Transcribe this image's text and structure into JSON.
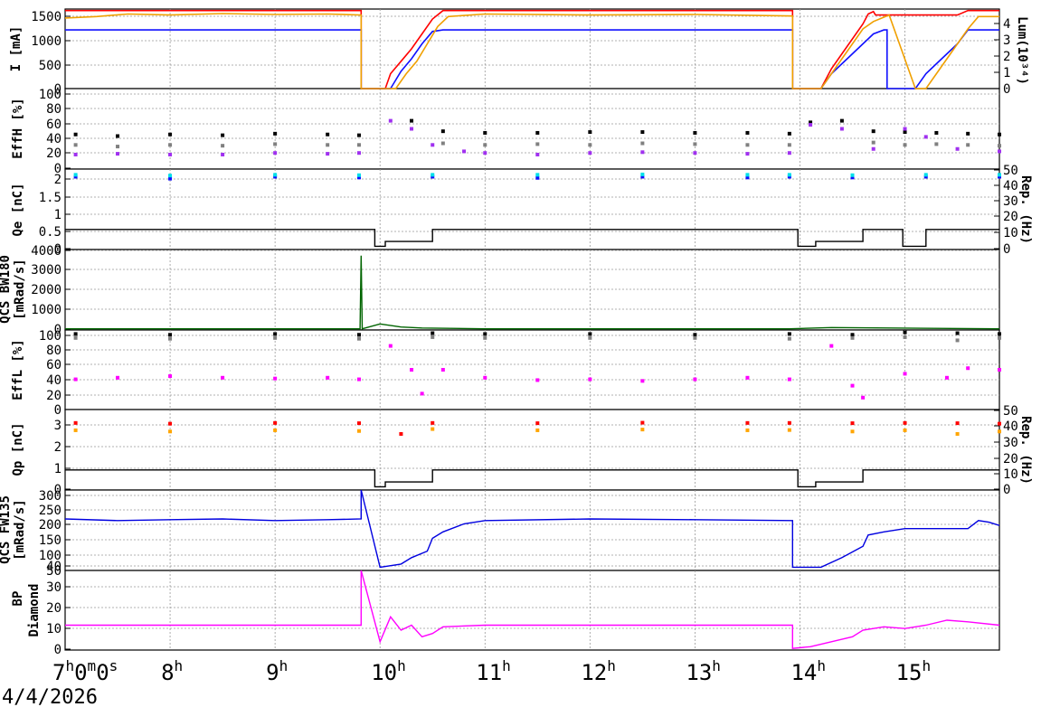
{
  "date": "4/4/2026",
  "x_tick_labels": [
    {
      "h": "7",
      "s1": "h",
      "m": "0",
      "s2": "m",
      "sec": "0",
      "s3": "s"
    },
    {
      "h": "8",
      "s1": "h"
    },
    {
      "h": "9",
      "s1": "h"
    },
    {
      "h": "10",
      "s1": "h"
    },
    {
      "h": "11",
      "s1": "h"
    },
    {
      "h": "12",
      "s1": "h"
    },
    {
      "h": "13",
      "s1": "h"
    },
    {
      "h": "14",
      "s1": "h"
    },
    {
      "h": "15",
      "s1": "h"
    }
  ],
  "panels": {
    "current": {
      "ylabel": "I [mA]",
      "yticks": [
        "0",
        "500",
        "1000",
        "1500"
      ],
      "r_label": "Lum(10³⁴)",
      "r_ticks": [
        "0",
        "1",
        "2",
        "3",
        "4"
      ]
    },
    "eff_h": {
      "ylabel": "EffH [%]",
      "yticks": [
        "0",
        "20",
        "40",
        "60",
        "80",
        "100"
      ]
    },
    "qe": {
      "ylabel": "Qe [nC]",
      "yticks": [
        "0",
        "0.5",
        "1",
        "1.5",
        "2"
      ],
      "r_label": "Rep. (Hz)",
      "r_ticks": [
        "0",
        "10",
        "20",
        "30",
        "40",
        "50"
      ]
    },
    "qcs_bw": {
      "ylabel_top": "QCS BW180",
      "ylabel_bot": "[mRad/s]",
      "yticks": [
        "0",
        "1000",
        "2000",
        "3000",
        "4000"
      ]
    },
    "eff_l": {
      "ylabel": "EffL [%]",
      "yticks": [
        "0",
        "20",
        "40",
        "60",
        "80",
        "100"
      ]
    },
    "qp": {
      "ylabel": "Qp [nC]",
      "yticks": [
        "0",
        "1",
        "2",
        "3"
      ],
      "r_label": "Rep. (Hz)",
      "r_ticks": [
        "0",
        "10",
        "20",
        "30",
        "40",
        "50"
      ]
    },
    "qcs_fw": {
      "ylabel_top": "QCS FW135",
      "ylabel_bot": "[mRad/s]",
      "yticks": [
        "50",
        "100",
        "150",
        "200",
        "250",
        "300"
      ]
    },
    "bp": {
      "ylabel_top": "BP",
      "ylabel_bot": "Diamond",
      "yticks": [
        "0",
        "10",
        "20",
        "30",
        "40"
      ]
    }
  },
  "chart_data": [
    {
      "type": "line",
      "panel": "current",
      "x_unit": "hour",
      "xlim": [
        7.0,
        15.9
      ],
      "ylim": [
        0,
        1600
      ],
      "series": [
        {
          "color": "#ff0000",
          "x": [
            7.0,
            9.82,
            9.82,
            10.05,
            10.1,
            10.2,
            10.3,
            10.4,
            10.5,
            10.6,
            13.93,
            13.93,
            14.2,
            14.3,
            14.4,
            14.5,
            14.6,
            14.65,
            14.7,
            14.72,
            15.1,
            15.2,
            15.3,
            15.4,
            15.5,
            15.6,
            15.9
          ],
          "y": [
            1570,
            1570,
            0,
            0,
            300,
            550,
            800,
            1100,
            1400,
            1570,
            1570,
            0,
            0,
            400,
            700,
            1000,
            1300,
            1500,
            1550,
            1480,
            1480,
            1480,
            1480,
            1480,
            1480,
            1570,
            1570
          ]
        },
        {
          "color": "#1010ff",
          "x": [
            7.0,
            9.82,
            9.82,
            10.1,
            10.2,
            10.3,
            10.4,
            10.5,
            10.6,
            13.93,
            13.93,
            14.2,
            14.3,
            14.4,
            14.5,
            14.6,
            14.7,
            14.8,
            14.83,
            14.83,
            15.1,
            15.2,
            15.3,
            15.4,
            15.5,
            15.6,
            15.9
          ],
          "y": [
            1180,
            1180,
            0,
            0,
            350,
            600,
            900,
            1150,
            1180,
            1180,
            0,
            0,
            300,
            500,
            700,
            900,
            1100,
            1180,
            1180,
            0,
            0,
            300,
            500,
            700,
            900,
            1180,
            1180
          ]
        },
        {
          "color": "#f0a000",
          "x": [
            7.0,
            7.3,
            7.6,
            8.0,
            8.5,
            9.0,
            9.5,
            9.82,
            9.82,
            10.15,
            10.25,
            10.35,
            10.45,
            10.55,
            10.65,
            11.0,
            12.0,
            13.0,
            13.93,
            13.93,
            14.2,
            14.3,
            14.4,
            14.5,
            14.6,
            14.7,
            14.85,
            15.1,
            15.2,
            15.3,
            15.4,
            15.5,
            15.6,
            15.7,
            15.9
          ],
          "y": [
            1420,
            1450,
            1500,
            1480,
            1510,
            1490,
            1500,
            1480,
            0,
            0,
            300,
            550,
            900,
            1250,
            1450,
            1500,
            1480,
            1490,
            1460,
            0,
            0,
            300,
            600,
            900,
            1200,
            1350,
            1480,
            0,
            0,
            300,
            600,
            900,
            1200,
            1450,
            1450
          ]
        }
      ]
    },
    {
      "type": "scatter",
      "panel": "eff_h",
      "x_unit": "hour",
      "xlim": [
        7.0,
        15.9
      ],
      "ylim": [
        0,
        100
      ],
      "series": [
        {
          "color": "#000000",
          "x": [
            7.1,
            7.5,
            8.0,
            8.5,
            9.0,
            9.5,
            9.8,
            10.3,
            10.6,
            11.0,
            11.5,
            12.0,
            12.5,
            13.0,
            13.5,
            13.9,
            14.1,
            14.4,
            14.7,
            15.0,
            15.3,
            15.6,
            15.9
          ],
          "y": [
            43,
            41,
            43,
            42,
            44,
            43,
            42,
            60,
            47,
            45,
            45,
            46,
            46,
            45,
            45,
            44,
            58,
            60,
            47,
            46,
            45,
            44,
            43
          ]
        },
        {
          "color": "#808080",
          "x": [
            7.1,
            7.5,
            8.0,
            8.5,
            9.0,
            9.5,
            9.8,
            10.6,
            11.0,
            11.5,
            12.0,
            12.5,
            13.0,
            13.5,
            13.9,
            14.7,
            15.0,
            15.3,
            15.6,
            15.9
          ],
          "y": [
            30,
            28,
            30,
            29,
            31,
            30,
            30,
            32,
            30,
            31,
            30,
            32,
            31,
            30,
            30,
            33,
            30,
            31,
            30,
            29
          ]
        },
        {
          "color": "#a030f0",
          "x": [
            7.1,
            7.5,
            8.0,
            8.5,
            9.0,
            9.5,
            9.8,
            10.1,
            10.3,
            10.5,
            10.8,
            11.0,
            11.5,
            12.0,
            12.5,
            13.0,
            13.5,
            13.9,
            14.1,
            14.4,
            14.7,
            15.0,
            15.2,
            15.5,
            15.9
          ],
          "y": [
            18,
            19,
            18,
            18,
            20,
            19,
            20,
            60,
            50,
            30,
            22,
            20,
            18,
            20,
            21,
            20,
            19,
            20,
            55,
            50,
            25,
            50,
            40,
            25,
            22
          ]
        }
      ]
    },
    {
      "type": "scatter",
      "panel": "qe",
      "x_unit": "hour",
      "xlim": [
        7.0,
        15.9
      ],
      "ylim": [
        0,
        2.1
      ],
      "series": [
        {
          "color": "#1010ff",
          "x": [
            7.1,
            8.0,
            9.0,
            9.8,
            10.5,
            11.5,
            12.5,
            13.5,
            13.9,
            14.5,
            15.2,
            15.9
          ],
          "y": [
            1.9,
            1.85,
            1.9,
            1.88,
            1.9,
            1.87,
            1.9,
            1.88,
            1.9,
            1.88,
            1.9,
            1.9
          ]
        },
        {
          "color": "#00e0e8",
          "x": [
            7.1,
            8.0,
            9.0,
            9.8,
            10.5,
            11.5,
            12.5,
            13.5,
            13.9,
            14.5,
            15.2,
            15.9
          ],
          "y": [
            1.95,
            1.93,
            1.95,
            1.94,
            1.95,
            1.95,
            1.96,
            1.95,
            1.95,
            1.94,
            1.95,
            1.95
          ]
        }
      ]
    },
    {
      "type": "line",
      "panel": "qe_rep",
      "x_unit": "hour",
      "xlim": [
        7.0,
        15.9
      ],
      "ylim": [
        0,
        50
      ],
      "series": [
        {
          "color": "#000000",
          "x": [
            7.0,
            9.95,
            9.95,
            10.05,
            10.05,
            10.5,
            10.5,
            13.98,
            13.98,
            14.15,
            14.15,
            14.6,
            14.6,
            14.98,
            14.98,
            15.2,
            15.2,
            15.9
          ],
          "y": [
            12.5,
            12.5,
            2,
            2,
            5,
            5,
            12.5,
            12.5,
            2,
            2,
            5,
            5,
            12.5,
            12.5,
            2,
            2,
            12.5,
            12.5
          ]
        }
      ]
    },
    {
      "type": "line",
      "panel": "qcs_bw",
      "x_unit": "hour",
      "xlim": [
        7.0,
        15.9
      ],
      "ylim": [
        0,
        4000
      ],
      "series": [
        {
          "color": "#006400",
          "x": [
            7.0,
            9.81,
            9.82,
            9.83,
            10.0,
            10.2,
            10.4,
            11.0,
            13.9,
            14.3,
            15.9
          ],
          "y": [
            60,
            60,
            3700,
            60,
            300,
            150,
            100,
            60,
            60,
            120,
            60
          ]
        }
      ]
    },
    {
      "type": "scatter",
      "panel": "eff_l",
      "x_unit": "hour",
      "xlim": [
        7.0,
        15.9
      ],
      "ylim": [
        0,
        100
      ],
      "series": [
        {
          "color": "#000000",
          "x": [
            7.1,
            8.0,
            9.0,
            9.8,
            10.5,
            11.0,
            12.0,
            13.0,
            13.9,
            14.5,
            15.0,
            15.5,
            15.9
          ],
          "y": [
            95,
            94,
            95,
            94,
            96,
            95,
            95,
            94,
            95,
            94,
            97,
            96,
            95
          ]
        },
        {
          "color": "#808080",
          "x": [
            7.1,
            8.0,
            9.0,
            9.8,
            10.5,
            11.0,
            12.0,
            13.0,
            13.9,
            14.5,
            15.0,
            15.5,
            15.9
          ],
          "y": [
            90,
            89,
            90,
            89,
            91,
            90,
            90,
            90,
            89,
            90,
            91,
            87,
            90
          ]
        },
        {
          "color": "#ff00ff",
          "x": [
            7.1,
            7.5,
            8.0,
            8.5,
            9.0,
            9.5,
            9.8,
            10.1,
            10.3,
            10.4,
            10.6,
            11.0,
            11.5,
            12.0,
            12.5,
            13.0,
            13.5,
            13.9,
            14.3,
            14.5,
            14.6,
            15.0,
            15.4,
            15.6,
            15.9
          ],
          "y": [
            38,
            40,
            42,
            40,
            39,
            40,
            38,
            80,
            50,
            20,
            50,
            40,
            37,
            38,
            36,
            38,
            40,
            38,
            80,
            30,
            15,
            45,
            40,
            52,
            50
          ]
        }
      ]
    },
    {
      "type": "scatter",
      "panel": "qp",
      "x_unit": "hour",
      "xlim": [
        7.0,
        15.9
      ],
      "ylim": [
        0,
        3.3
      ],
      "series": [
        {
          "color": "#ff0000",
          "x": [
            7.1,
            8.0,
            9.0,
            9.8,
            10.2,
            10.5,
            11.5,
            12.5,
            13.5,
            13.9,
            14.5,
            15.0,
            15.5,
            15.9
          ],
          "y": [
            2.75,
            2.72,
            2.75,
            2.74,
            2.3,
            2.75,
            2.74,
            2.76,
            2.75,
            2.75,
            2.74,
            2.75,
            2.74,
            2.72
          ]
        },
        {
          "color": "#ffa500",
          "x": [
            7.1,
            8.0,
            9.0,
            9.8,
            10.5,
            11.5,
            12.5,
            13.5,
            13.9,
            14.5,
            15.0,
            15.5,
            15.9
          ],
          "y": [
            2.45,
            2.4,
            2.45,
            2.42,
            2.5,
            2.45,
            2.48,
            2.45,
            2.46,
            2.4,
            2.45,
            2.3,
            2.4
          ]
        }
      ]
    },
    {
      "type": "line",
      "panel": "qp_rep",
      "x_unit": "hour",
      "xlim": [
        7.0,
        15.9
      ],
      "ylim": [
        0,
        50
      ],
      "series": [
        {
          "color": "#000000",
          "x": [
            7.0,
            9.95,
            9.95,
            10.05,
            10.05,
            10.5,
            10.5,
            13.98,
            13.98,
            14.15,
            14.15,
            14.6,
            14.6,
            15.9
          ],
          "y": [
            12.5,
            12.5,
            2,
            2,
            5,
            5,
            12.5,
            12.5,
            2,
            2,
            5,
            5,
            12.5,
            12.5
          ]
        }
      ]
    },
    {
      "type": "line",
      "panel": "qcs_fw",
      "x_unit": "hour",
      "xlim": [
        7.0,
        15.9
      ],
      "ylim": [
        50,
        300
      ],
      "series": [
        {
          "color": "#0000e0",
          "x": [
            7.0,
            7.5,
            8.0,
            8.5,
            9.0,
            9.5,
            9.82,
            9.82,
            10.0,
            10.2,
            10.3,
            10.45,
            10.5,
            10.6,
            10.8,
            11.0,
            12.0,
            13.0,
            13.93,
            13.93,
            14.2,
            14.4,
            14.6,
            14.65,
            14.8,
            15.0,
            15.3,
            15.6,
            15.7,
            15.8,
            15.9
          ],
          "y": [
            210,
            205,
            208,
            210,
            205,
            208,
            210,
            300,
            60,
            70,
            90,
            110,
            150,
            170,
            195,
            205,
            210,
            208,
            205,
            60,
            60,
            90,
            125,
            160,
            170,
            180,
            180,
            180,
            205,
            200,
            190
          ]
        }
      ]
    },
    {
      "type": "line",
      "panel": "bp",
      "x_unit": "hour",
      "xlim": [
        7.0,
        15.9
      ],
      "ylim": [
        0,
        48
      ],
      "series": [
        {
          "color": "#ff00ff",
          "x": [
            7.0,
            7.5,
            8.0,
            8.5,
            9.0,
            9.5,
            9.82,
            9.82,
            10.0,
            10.1,
            10.2,
            10.3,
            10.4,
            10.5,
            10.6,
            11.0,
            12.0,
            13.0,
            13.93,
            13.93,
            14.1,
            14.3,
            14.5,
            14.6,
            14.8,
            15.0,
            15.2,
            15.4,
            15.6,
            15.9
          ],
          "y": [
            15,
            15,
            15,
            15,
            15,
            15,
            15,
            48,
            5,
            20,
            12,
            15,
            8,
            10,
            14,
            15,
            15,
            15,
            15,
            1,
            2,
            5,
            8,
            12,
            14,
            13,
            15,
            18,
            17,
            15
          ]
        }
      ]
    }
  ]
}
